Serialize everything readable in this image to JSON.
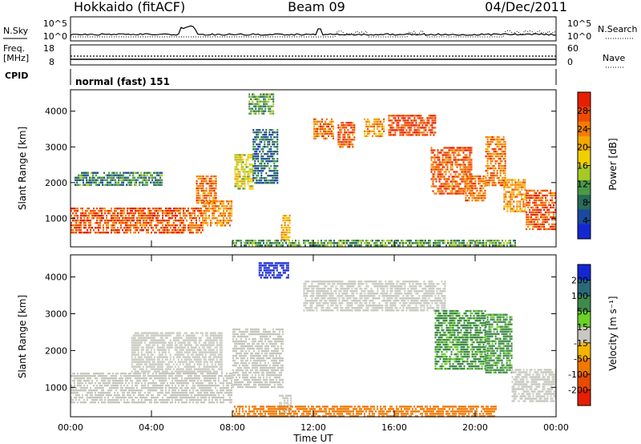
{
  "header": {
    "station": "Hokkaido (fitACF)",
    "beam": "Beam 09",
    "date": "04/Dec/2011"
  },
  "noise_panel": {
    "left_label": "N.Sky",
    "right_label": "N.Search",
    "left_ticks": [
      "10^5",
      "10^0"
    ],
    "right_ticks": [
      "10^5",
      "10^0"
    ]
  },
  "freq_panel": {
    "label_line1": "Freq.",
    "label_line2": "[MHz]",
    "left_ticks": [
      "18",
      "8"
    ],
    "right_label": "Nave",
    "right_ticks": [
      "60",
      "0"
    ]
  },
  "cpid_panel": {
    "label": "CPID",
    "value": "normal (fast) 151"
  },
  "colors": {
    "power_low": "#1428d2",
    "power_mid": "#3f8a4a",
    "power_high": "#e81e00",
    "velocity_ground": "#c8c8c0",
    "velocity_positive": "#6ccf2a",
    "velocity_negative": "#f07800"
  },
  "chart_data": [
    {
      "type": "heatmap",
      "panel": "power",
      "xlabel": "",
      "ylabel": "Slant Range [km]",
      "ylim": [
        200,
        4600
      ],
      "xlim": [
        0,
        24
      ],
      "yticks": [
        "1000",
        "2000",
        "3000",
        "4000"
      ],
      "colorbar": {
        "label": "Power [dB]",
        "ticks": [
          "28",
          "24",
          "20",
          "16",
          "12",
          "8",
          "4"
        ],
        "colors": [
          "#e81e00",
          "#f04a00",
          "#f47c00",
          "#f4a800",
          "#f0d000",
          "#a8c828",
          "#4a9a48",
          "#2a6a58",
          "#1a4aa0",
          "#1428d2"
        ]
      },
      "regions": [
        {
          "t0": 0.0,
          "t1": 6.5,
          "r0": 600,
          "r1": 1300,
          "value": 26
        },
        {
          "t0": 6.5,
          "t1": 8.0,
          "r0": 800,
          "r1": 1500,
          "value": 22
        },
        {
          "t0": 0.2,
          "t1": 4.5,
          "r0": 1900,
          "r1": 2300,
          "value": 8
        },
        {
          "t0": 6.2,
          "t1": 7.2,
          "r0": 1400,
          "r1": 2200,
          "value": 24
        },
        {
          "t0": 8.1,
          "t1": 9.0,
          "r0": 1800,
          "r1": 2800,
          "value": 16
        },
        {
          "t0": 9.0,
          "t1": 10.2,
          "r0": 2000,
          "r1": 3500,
          "value": 6
        },
        {
          "t0": 8.8,
          "t1": 10.0,
          "r0": 3900,
          "r1": 4500,
          "value": 10
        },
        {
          "t0": 10.4,
          "t1": 10.8,
          "r0": 400,
          "r1": 1100,
          "value": 20
        },
        {
          "t0": 12.0,
          "t1": 13.0,
          "r0": 3200,
          "r1": 3800,
          "value": 24
        },
        {
          "t0": 13.2,
          "t1": 14.0,
          "r0": 3000,
          "r1": 3700,
          "value": 26
        },
        {
          "t0": 14.5,
          "t1": 15.5,
          "r0": 3300,
          "r1": 3800,
          "value": 22
        },
        {
          "t0": 15.7,
          "t1": 18.0,
          "r0": 3300,
          "r1": 3900,
          "value": 28
        },
        {
          "t0": 17.8,
          "t1": 19.8,
          "r0": 1700,
          "r1": 3000,
          "value": 26
        },
        {
          "t0": 19.5,
          "t1": 20.5,
          "r0": 1500,
          "r1": 2200,
          "value": 24
        },
        {
          "t0": 20.5,
          "t1": 21.5,
          "r0": 1900,
          "r1": 3300,
          "value": 24
        },
        {
          "t0": 21.4,
          "t1": 22.5,
          "r0": 1200,
          "r1": 2100,
          "value": 22
        },
        {
          "t0": 22.5,
          "t1": 24.0,
          "r0": 700,
          "r1": 1800,
          "value": 26
        },
        {
          "t0": 8.0,
          "t1": 22.0,
          "r0": 250,
          "r1": 400,
          "value": 10
        }
      ]
    },
    {
      "type": "heatmap",
      "panel": "velocity",
      "xlabel": "Time UT",
      "ylabel": "Slant Range [km]",
      "ylim": [
        200,
        4600
      ],
      "xlim": [
        0,
        24
      ],
      "xticks": [
        "00:00",
        "04:00",
        "08:00",
        "12:00",
        "16:00",
        "20:00",
        "00:00"
      ],
      "yticks": [
        "1000",
        "2000",
        "3000",
        "4000"
      ],
      "colorbar": {
        "label": "Velocity [m s⁻¹]",
        "ticks": [
          "200",
          "100",
          "50",
          "15",
          "-15",
          "-50",
          "-100",
          "-200"
        ],
        "colors": [
          "#1428d2",
          "#2a6a78",
          "#3f8a4a",
          "#6ccf2a",
          "#c8c8c0",
          "#f4b400",
          "#f07800",
          "#e84a00",
          "#e81e00"
        ]
      },
      "regions": [
        {
          "t0": 0.0,
          "t1": 8.0,
          "r0": 600,
          "r1": 1400,
          "value": 0
        },
        {
          "t0": 3.0,
          "t1": 7.5,
          "r0": 1400,
          "r1": 2500,
          "value": 0
        },
        {
          "t0": 8.0,
          "t1": 10.5,
          "r0": 1000,
          "r1": 2600,
          "value": 0
        },
        {
          "t0": 9.3,
          "t1": 10.8,
          "r0": 4000,
          "r1": 4400,
          "value": 220
        },
        {
          "t0": 10.3,
          "t1": 10.9,
          "r0": 300,
          "r1": 800,
          "value": 0
        },
        {
          "t0": 11.5,
          "t1": 18.5,
          "r0": 3100,
          "r1": 3900,
          "value": 0
        },
        {
          "t0": 18.0,
          "t1": 20.5,
          "r0": 1500,
          "r1": 3100,
          "value": 40
        },
        {
          "t0": 20.5,
          "t1": 21.8,
          "r0": 1400,
          "r1": 3000,
          "value": 40
        },
        {
          "t0": 21.8,
          "t1": 24.0,
          "r0": 600,
          "r1": 1500,
          "value": 0
        },
        {
          "t0": 8.0,
          "t1": 21.0,
          "r0": 200,
          "r1": 500,
          "value": -60
        }
      ]
    }
  ]
}
